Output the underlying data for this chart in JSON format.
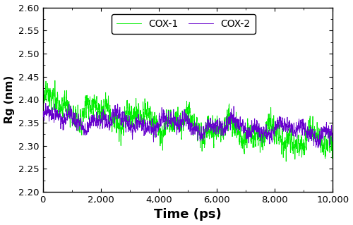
{
  "title": "",
  "xlabel": "Time (ps)",
  "ylabel": "Rg (nm)",
  "xlim": [
    0,
    10000
  ],
  "ylim": [
    2.2,
    2.6
  ],
  "yticks": [
    2.2,
    2.25,
    2.3,
    2.35,
    2.4,
    2.45,
    2.5,
    2.55,
    2.6
  ],
  "xticks": [
    0,
    2000,
    4000,
    6000,
    8000,
    10000
  ],
  "cox1_color": "#00ee00",
  "cox2_color": "#6600cc",
  "legend_labels": [
    "COX-1",
    "COX-2"
  ],
  "n_points": 5000,
  "seed": 42,
  "cox1_start": 2.385,
  "cox1_end": 2.305,
  "cox1_noise": 0.012,
  "cox2_start": 2.36,
  "cox2_end": 2.33,
  "cox2_noise": 0.008,
  "linewidth": 0.6,
  "figsize": [
    5.0,
    3.19
  ],
  "dpi": 100
}
